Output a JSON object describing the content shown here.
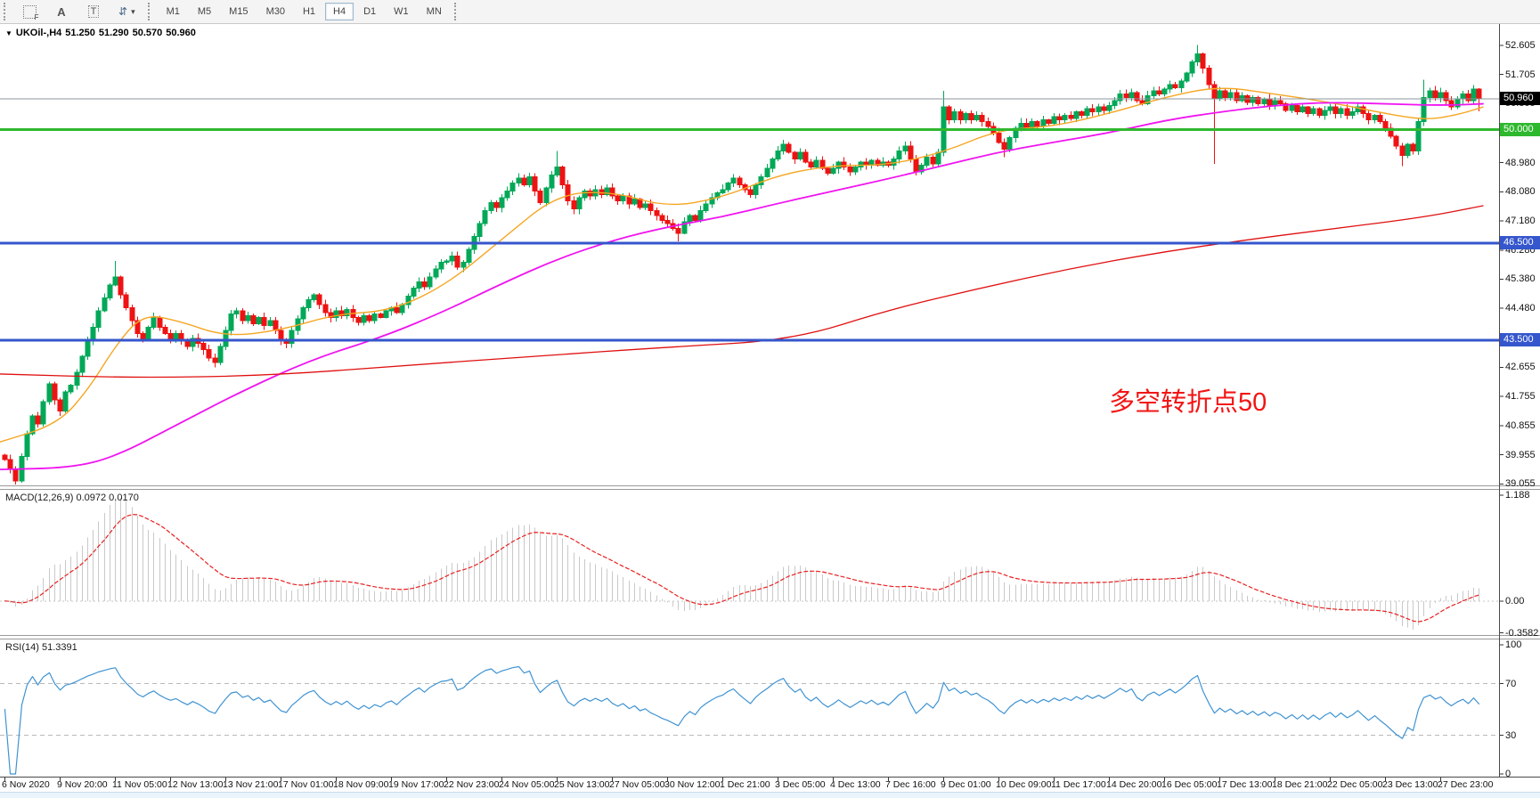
{
  "toolbar": {
    "tools": [
      {
        "name": "fibonacci-grid-tool",
        "glyph": "F"
      },
      {
        "name": "text-label-tool",
        "glyph": "A"
      },
      {
        "name": "text-tool",
        "glyph": "T"
      },
      {
        "name": "arrows-tool",
        "glyph": "⇵"
      }
    ],
    "timeframes": [
      "M1",
      "M5",
      "M15",
      "M30",
      "H1",
      "H4",
      "D1",
      "W1",
      "MN"
    ],
    "active_timeframe": "H4"
  },
  "chart": {
    "symbol_title": "UKOil-,H4",
    "open": "51.250",
    "high": "51.290",
    "low": "50.570",
    "close": "50.960"
  },
  "annotation": {
    "text": "多空转折点50",
    "color": "#f21515"
  },
  "price_axis": {
    "ticks": [
      "52.605",
      "51.705",
      "50.805",
      "49.880",
      "48.980",
      "48.080",
      "47.180",
      "46.280",
      "45.380",
      "44.480",
      "42.655",
      "41.755",
      "40.855",
      "39.955",
      "39.055"
    ]
  },
  "levels": {
    "current": {
      "value": "50.960",
      "line_color": "#8b949c",
      "box_color": "#000000"
    },
    "horizontal_lines": [
      {
        "value": "50.000",
        "color": "#2eb82e"
      },
      {
        "value": "46.500",
        "color": "#3556cc"
      },
      {
        "value": "43.500",
        "color": "#3556cc"
      }
    ]
  },
  "macd": {
    "label": "MACD(12,26,9) 0.0972 0.0170",
    "fast": 12,
    "slow": 26,
    "signal": 9,
    "value": "0.0972",
    "signal_value": "0.0170",
    "ticks": [
      "1.188",
      "0.00",
      "-0.3582"
    ],
    "histogram_color": "#c9c9c9",
    "signal_color": "#e82020"
  },
  "rsi": {
    "label": "RSI(14) 51.3391",
    "period": 14,
    "value": "51.3391",
    "ticks": [
      "100",
      "70",
      "30",
      "0"
    ],
    "levels": [
      70,
      30
    ],
    "line_color": "#3f93d2"
  },
  "time_axis": {
    "labels": [
      "6 Nov 2020",
      "9 Nov 20:00",
      "11 Nov 05:00",
      "12 Nov 13:00",
      "13 Nov 21:00",
      "17 Nov 01:00",
      "18 Nov 09:00",
      "19 Nov 17:00",
      "22 Nov 23:00",
      "24 Nov 05:00",
      "25 Nov 13:00",
      "27 Nov 05:00",
      "30 Nov 12:00",
      "1 Dec 21:00",
      "3 Dec 05:00",
      "4 Dec 13:00",
      "7 Dec 16:00",
      "9 Dec 01:00",
      "10 Dec 09:00",
      "11 Dec 17:00",
      "14 Dec 20:00",
      "16 Dec 05:00",
      "17 Dec 13:00",
      "18 Dec 21:00",
      "22 Dec 05:00",
      "23 Dec 13:00",
      "27 Dec 23:00"
    ]
  },
  "chart_data": {
    "type": "candlestick",
    "symbol": "UKOil-",
    "timeframe": "H4",
    "price_range_top": 53.29,
    "price_range_bottom": 39.0,
    "up_color": "#00a857",
    "down_color": "#ee1212",
    "bars": 268,
    "candles": [
      [
        0,
        39.8
      ],
      [
        1,
        39.5
      ],
      [
        2,
        39.15
      ],
      [
        3,
        39.9
      ],
      [
        4,
        40.6
      ],
      [
        5,
        41.15
      ],
      [
        6,
        40.9
      ],
      [
        7,
        41.6
      ],
      [
        8,
        42.15
      ],
      [
        9,
        41.65
      ],
      [
        10,
        41.3
      ],
      [
        11,
        41.9
      ],
      [
        12,
        42.1
      ],
      [
        13,
        42.5
      ],
      [
        14,
        43.0
      ],
      [
        15,
        43.5
      ],
      [
        16,
        43.9
      ],
      [
        17,
        44.4
      ],
      [
        18,
        44.8
      ],
      [
        19,
        45.2
      ],
      [
        20,
        45.45
      ],
      [
        21,
        44.9
      ],
      [
        22,
        44.5
      ],
      [
        23,
        44.1
      ],
      [
        24,
        43.7
      ],
      [
        25,
        43.5
      ],
      [
        26,
        43.9
      ],
      [
        27,
        44.2
      ],
      [
        28,
        43.9
      ],
      [
        29,
        43.7
      ],
      [
        30,
        43.55
      ],
      [
        31,
        43.7
      ],
      [
        32,
        43.5
      ],
      [
        33,
        43.3
      ],
      [
        34,
        43.55
      ],
      [
        35,
        43.4
      ],
      [
        36,
        43.2
      ],
      [
        37,
        42.95
      ],
      [
        38,
        42.8
      ],
      [
        39,
        43.3
      ],
      [
        40,
        43.8
      ],
      [
        41,
        44.3
      ],
      [
        42,
        44.4
      ],
      [
        43,
        44.1
      ],
      [
        44,
        44.25
      ],
      [
        45,
        44.0
      ],
      [
        46,
        44.2
      ],
      [
        47,
        43.95
      ],
      [
        48,
        44.1
      ],
      [
        49,
        43.8
      ],
      [
        50,
        43.5
      ],
      [
        51,
        43.4
      ],
      [
        52,
        43.8
      ],
      [
        53,
        44.15
      ],
      [
        54,
        44.5
      ],
      [
        55,
        44.75
      ],
      [
        56,
        44.9
      ],
      [
        57,
        44.6
      ],
      [
        58,
        44.35
      ],
      [
        59,
        44.2
      ],
      [
        60,
        44.4
      ],
      [
        61,
        44.25
      ],
      [
        62,
        44.45
      ],
      [
        63,
        44.2
      ],
      [
        64,
        44.05
      ],
      [
        65,
        44.25
      ],
      [
        66,
        44.1
      ],
      [
        67,
        44.3
      ],
      [
        68,
        44.2
      ],
      [
        69,
        44.4
      ],
      [
        70,
        44.5
      ],
      [
        71,
        44.35
      ],
      [
        72,
        44.6
      ],
      [
        73,
        44.85
      ],
      [
        74,
        45.1
      ],
      [
        75,
        45.3
      ],
      [
        76,
        45.15
      ],
      [
        77,
        45.45
      ],
      [
        78,
        45.7
      ],
      [
        79,
        45.9
      ],
      [
        80,
        45.95
      ],
      [
        81,
        46.1
      ],
      [
        82,
        45.75
      ],
      [
        83,
        45.9
      ],
      [
        84,
        46.3
      ],
      [
        85,
        46.7
      ],
      [
        86,
        47.1
      ],
      [
        87,
        47.5
      ],
      [
        88,
        47.75
      ],
      [
        89,
        47.6
      ],
      [
        90,
        47.9
      ],
      [
        91,
        48.1
      ],
      [
        92,
        48.35
      ],
      [
        93,
        48.5
      ],
      [
        94,
        48.3
      ],
      [
        95,
        48.55
      ],
      [
        96,
        48.1
      ],
      [
        97,
        47.75
      ],
      [
        98,
        48.2
      ],
      [
        99,
        48.6
      ],
      [
        100,
        48.85
      ],
      [
        101,
        48.3
      ],
      [
        102,
        47.8
      ],
      [
        103,
        47.55
      ],
      [
        104,
        47.9
      ],
      [
        105,
        48.1
      ],
      [
        106,
        47.95
      ],
      [
        107,
        48.15
      ],
      [
        108,
        48.0
      ],
      [
        109,
        48.2
      ],
      [
        110,
        47.95
      ],
      [
        111,
        47.8
      ],
      [
        112,
        47.95
      ],
      [
        113,
        47.7
      ],
      [
        114,
        47.85
      ],
      [
        115,
        47.6
      ],
      [
        116,
        47.7
      ],
      [
        117,
        47.5
      ],
      [
        118,
        47.35
      ],
      [
        119,
        47.2
      ],
      [
        120,
        47.1
      ],
      [
        121,
        46.95
      ],
      [
        122,
        46.8
      ],
      [
        123,
        47.15
      ],
      [
        124,
        47.35
      ],
      [
        125,
        47.2
      ],
      [
        126,
        47.5
      ],
      [
        127,
        47.7
      ],
      [
        128,
        47.9
      ],
      [
        129,
        48.05
      ],
      [
        130,
        48.15
      ],
      [
        131,
        48.35
      ],
      [
        132,
        48.5
      ],
      [
        133,
        48.3
      ],
      [
        134,
        48.15
      ],
      [
        135,
        48.0
      ],
      [
        136,
        48.3
      ],
      [
        137,
        48.55
      ],
      [
        138,
        48.8
      ],
      [
        139,
        49.1
      ],
      [
        140,
        49.35
      ],
      [
        141,
        49.55
      ],
      [
        142,
        49.3
      ],
      [
        143,
        49.1
      ],
      [
        144,
        49.3
      ],
      [
        145,
        49.0
      ],
      [
        146,
        48.85
      ],
      [
        147,
        49.05
      ],
      [
        148,
        48.8
      ],
      [
        149,
        48.65
      ],
      [
        150,
        48.8
      ],
      [
        151,
        49.0
      ],
      [
        152,
        48.85
      ],
      [
        153,
        48.7
      ],
      [
        154,
        48.85
      ],
      [
        155,
        49.0
      ],
      [
        156,
        48.9
      ],
      [
        157,
        49.05
      ],
      [
        158,
        48.9
      ],
      [
        159,
        49.0
      ],
      [
        160,
        48.9
      ],
      [
        161,
        49.1
      ],
      [
        162,
        49.35
      ],
      [
        163,
        49.5
      ],
      [
        164,
        49.1
      ],
      [
        165,
        48.7
      ],
      [
        166,
        48.9
      ],
      [
        167,
        49.15
      ],
      [
        168,
        48.95
      ],
      [
        169,
        49.3
      ],
      [
        170,
        50.7
      ],
      [
        171,
        50.3
      ],
      [
        172,
        50.55
      ],
      [
        173,
        50.3
      ],
      [
        174,
        50.5
      ],
      [
        175,
        50.3
      ],
      [
        176,
        50.45
      ],
      [
        177,
        50.25
      ],
      [
        178,
        50.1
      ],
      [
        179,
        49.9
      ],
      [
        180,
        49.6
      ],
      [
        181,
        49.4
      ],
      [
        182,
        49.75
      ],
      [
        183,
        50.05
      ],
      [
        184,
        50.2
      ],
      [
        185,
        50.05
      ],
      [
        186,
        50.25
      ],
      [
        187,
        50.1
      ],
      [
        188,
        50.3
      ],
      [
        189,
        50.2
      ],
      [
        190,
        50.4
      ],
      [
        191,
        50.3
      ],
      [
        192,
        50.45
      ],
      [
        193,
        50.35
      ],
      [
        194,
        50.55
      ],
      [
        195,
        50.45
      ],
      [
        196,
        50.65
      ],
      [
        197,
        50.55
      ],
      [
        198,
        50.7
      ],
      [
        199,
        50.6
      ],
      [
        200,
        50.75
      ],
      [
        201,
        50.9
      ],
      [
        202,
        51.1
      ],
      [
        203,
        51.0
      ],
      [
        204,
        51.15
      ],
      [
        205,
        50.9
      ],
      [
        206,
        50.8
      ],
      [
        207,
        51.05
      ],
      [
        208,
        51.2
      ],
      [
        209,
        51.1
      ],
      [
        210,
        51.25
      ],
      [
        211,
        51.4
      ],
      [
        212,
        51.3
      ],
      [
        213,
        51.5
      ],
      [
        214,
        51.75
      ],
      [
        215,
        52.1
      ],
      [
        216,
        52.35
      ],
      [
        217,
        51.9
      ],
      [
        218,
        51.4
      ],
      [
        219,
        50.95
      ],
      [
        220,
        51.2
      ],
      [
        221,
        51.0
      ],
      [
        222,
        51.15
      ],
      [
        223,
        50.9
      ],
      [
        224,
        51.05
      ],
      [
        225,
        50.85
      ],
      [
        226,
        51.0
      ],
      [
        227,
        50.8
      ],
      [
        228,
        50.95
      ],
      [
        229,
        50.75
      ],
      [
        230,
        50.9
      ],
      [
        231,
        50.8
      ],
      [
        232,
        50.6
      ],
      [
        233,
        50.75
      ],
      [
        234,
        50.55
      ],
      [
        235,
        50.7
      ],
      [
        236,
        50.5
      ],
      [
        237,
        50.65
      ],
      [
        238,
        50.45
      ],
      [
        239,
        50.6
      ],
      [
        240,
        50.7
      ],
      [
        241,
        50.5
      ],
      [
        242,
        50.65
      ],
      [
        243,
        50.45
      ],
      [
        244,
        50.55
      ],
      [
        245,
        50.7
      ],
      [
        246,
        50.5
      ],
      [
        247,
        50.3
      ],
      [
        248,
        50.45
      ],
      [
        249,
        50.25
      ],
      [
        250,
        50.05
      ],
      [
        251,
        49.8
      ],
      [
        252,
        49.5
      ],
      [
        253,
        49.2
      ],
      [
        254,
        49.55
      ],
      [
        255,
        49.35
      ],
      [
        256,
        50.25
      ],
      [
        257,
        51.0
      ],
      [
        258,
        51.2
      ],
      [
        259,
        51.0
      ],
      [
        260,
        51.15
      ],
      [
        261,
        50.9
      ],
      [
        262,
        50.7
      ],
      [
        263,
        50.95
      ],
      [
        264,
        51.1
      ],
      [
        265,
        50.9
      ],
      [
        266,
        51.25
      ],
      [
        267,
        50.96
      ]
    ],
    "wick_overrides": [
      {
        "i": 2,
        "low": 39.0
      },
      {
        "i": 20,
        "high": 45.95
      },
      {
        "i": 38,
        "low": 42.65
      },
      {
        "i": 100,
        "high": 49.35
      },
      {
        "i": 122,
        "low": 46.55
      },
      {
        "i": 170,
        "high": 51.2
      },
      {
        "i": 181,
        "low": 49.15
      },
      {
        "i": 216,
        "high": 52.62
      },
      {
        "i": 219,
        "low": 48.95
      },
      {
        "i": 253,
        "low": 48.88
      },
      {
        "i": 257,
        "high": 51.55
      },
      {
        "i": 267,
        "high": 51.29,
        "low": 50.57
      }
    ],
    "moving_averages": [
      {
        "name": "fast-ma",
        "color": "#f5a623",
        "width": 1.4,
        "points": [
          [
            0,
            40.35
          ],
          [
            65,
            40.9
          ],
          [
            100,
            42.0
          ],
          [
            129,
            43.3
          ],
          [
            160,
            44.3
          ],
          [
            200,
            44.1
          ],
          [
            253,
            43.6
          ],
          [
            315,
            43.8
          ],
          [
            377,
            44.3
          ],
          [
            439,
            44.4
          ],
          [
            501,
            45.2
          ],
          [
            563,
            46.6
          ],
          [
            625,
            48.0
          ],
          [
            687,
            48.1
          ],
          [
            749,
            47.6
          ],
          [
            811,
            47.9
          ],
          [
            873,
            48.6
          ],
          [
            935,
            48.9
          ],
          [
            997,
            48.9
          ],
          [
            1059,
            49.3
          ],
          [
            1121,
            50.0
          ],
          [
            1183,
            50.1
          ],
          [
            1245,
            50.5
          ],
          [
            1307,
            51.0
          ],
          [
            1369,
            51.35
          ],
          [
            1431,
            51.1
          ],
          [
            1493,
            50.85
          ],
          [
            1555,
            50.5
          ],
          [
            1600,
            50.3
          ],
          [
            1635,
            50.45
          ],
          [
            1665,
            50.7
          ]
        ]
      },
      {
        "name": "mid-ma",
        "color": "#f014f0",
        "width": 1.8,
        "points": [
          [
            0,
            39.5
          ],
          [
            80,
            39.55
          ],
          [
            130,
            39.9
          ],
          [
            200,
            40.9
          ],
          [
            270,
            41.9
          ],
          [
            350,
            42.9
          ],
          [
            430,
            43.6
          ],
          [
            500,
            44.4
          ],
          [
            560,
            45.2
          ],
          [
            625,
            46.0
          ],
          [
            690,
            46.6
          ],
          [
            750,
            47.0
          ],
          [
            810,
            47.3
          ],
          [
            870,
            47.7
          ],
          [
            935,
            48.1
          ],
          [
            1000,
            48.5
          ],
          [
            1060,
            48.9
          ],
          [
            1120,
            49.3
          ],
          [
            1180,
            49.6
          ],
          [
            1245,
            49.9
          ],
          [
            1310,
            50.3
          ],
          [
            1370,
            50.55
          ],
          [
            1430,
            50.75
          ],
          [
            1490,
            50.85
          ],
          [
            1555,
            50.8
          ],
          [
            1620,
            50.75
          ],
          [
            1665,
            50.8
          ]
        ]
      },
      {
        "name": "slow-ma",
        "color": "#e01010",
        "width": 1.3,
        "points": [
          [
            0,
            42.45
          ],
          [
            150,
            42.33
          ],
          [
            300,
            42.4
          ],
          [
            450,
            42.7
          ],
          [
            600,
            43.0
          ],
          [
            750,
            43.28
          ],
          [
            890,
            43.5
          ],
          [
            1000,
            44.45
          ],
          [
            1100,
            45.1
          ],
          [
            1200,
            45.7
          ],
          [
            1300,
            46.2
          ],
          [
            1400,
            46.6
          ],
          [
            1500,
            46.95
          ],
          [
            1600,
            47.3
          ],
          [
            1665,
            47.65
          ]
        ]
      }
    ]
  }
}
